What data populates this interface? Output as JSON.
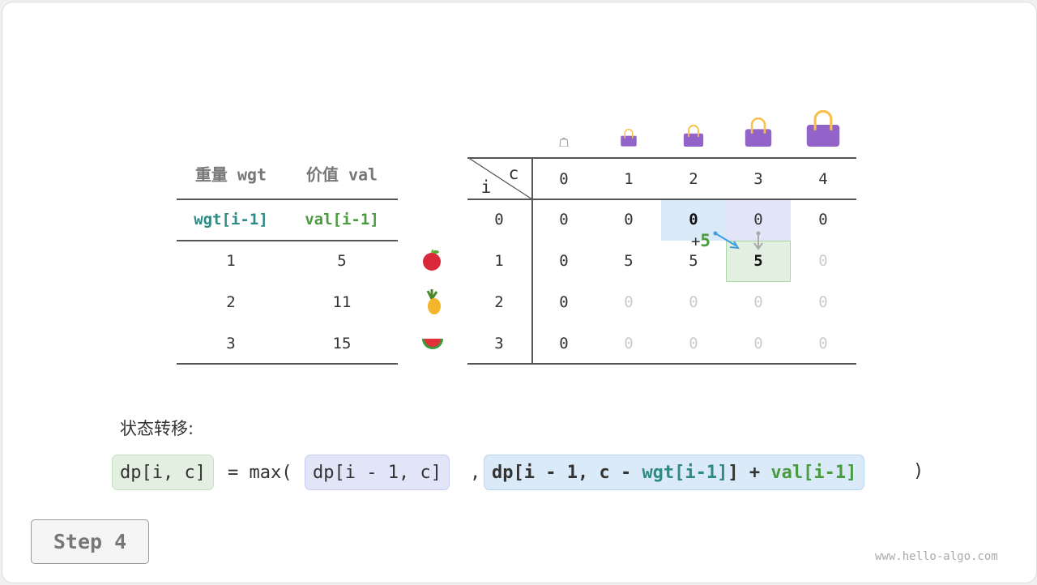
{
  "items_table": {
    "headers": [
      "重量 wgt",
      "价值 val"
    ],
    "subheaders": [
      "wgt[i-1]",
      "val[i-1]"
    ],
    "rows": [
      [
        "1",
        "5"
      ],
      [
        "2",
        "11"
      ],
      [
        "3",
        "15"
      ]
    ],
    "item_icons": [
      "apple-icon",
      "pineapple-icon",
      "watermelon-icon"
    ]
  },
  "dp_table": {
    "corner_c": "c",
    "corner_i": "i",
    "capacity_headers": [
      "0",
      "1",
      "2",
      "3",
      "4"
    ],
    "bag_icons": [
      "empty-bag-icon",
      "bag-size-1-icon",
      "bag-size-2-icon",
      "bag-size-3-icon",
      "bag-size-4-icon"
    ],
    "row_indices": [
      "0",
      "1",
      "2",
      "3"
    ],
    "rows": [
      [
        "0",
        "0",
        "0",
        "0",
        "0"
      ],
      [
        "0",
        "5",
        "5",
        "5",
        "0"
      ],
      [
        "0",
        "0",
        "0",
        "0",
        "0"
      ],
      [
        "0",
        "0",
        "0",
        "0",
        "0"
      ]
    ],
    "plus_sign": "+",
    "plus_value": "5"
  },
  "colors": {
    "blue_cell": "#dbeaf8",
    "lavender_cell": "#e1e5f7",
    "green_cell": "#e3f0e1",
    "teal": "#2e8b84",
    "green": "#4a9a3f",
    "bag": "#9264c9",
    "handle": "#f7c04a"
  },
  "equation": {
    "label": "状态转移:",
    "lhs": "dp[i, c]",
    "eq": "= max(",
    "term1": "dp[i - 1, c]",
    "comma": ",",
    "term2_a": "dp[i - 1, c - ",
    "term2_wgt": "wgt[i-1]",
    "term2_b": "] + ",
    "term2_val": "val[i-1]",
    "close": ")"
  },
  "step_button": "Step 4",
  "watermark": "www.hello-algo.com"
}
